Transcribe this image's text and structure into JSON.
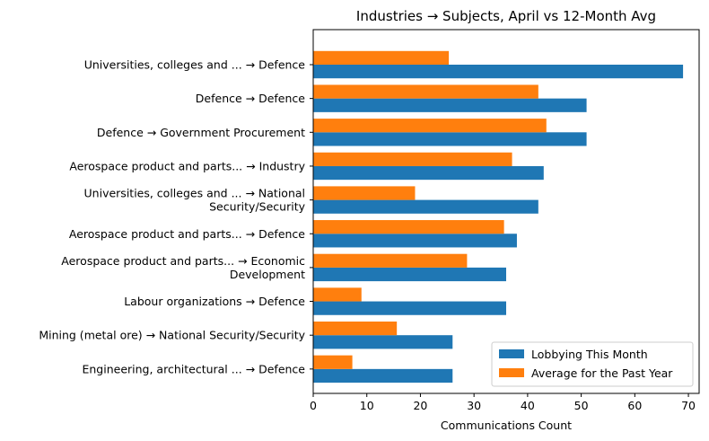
{
  "chart_data": {
    "type": "bar",
    "orientation": "horizontal",
    "title": "Industries → Subjects, April vs 12-Month Avg",
    "xlabel": "Communications Count",
    "ylabel": "",
    "xlim": [
      0,
      72
    ],
    "xticks": [
      "0",
      "10",
      "20",
      "30",
      "40",
      "50",
      "60",
      "70"
    ],
    "xtick_values": [
      0,
      10,
      20,
      30,
      40,
      50,
      60,
      70
    ],
    "grid": false,
    "legend_position": "lower-right",
    "categories": [
      [
        "Universities, colleges and ... → Defence"
      ],
      [
        "Defence → Defence"
      ],
      [
        "Defence → Government Procurement"
      ],
      [
        "Aerospace product and parts... → Industry"
      ],
      [
        "Universities, colleges and ... → National",
        "Security/Security"
      ],
      [
        "Aerospace product and parts... → Defence"
      ],
      [
        "Aerospace product and parts... → Economic",
        "Development"
      ],
      [
        "Labour organizations → Defence"
      ],
      [
        "Mining (metal ore) → National Security/Security"
      ],
      [
        "Engineering, architectural ... → Defence"
      ]
    ],
    "series": [
      {
        "name": "Lobbying This Month",
        "color": "#1f77b4",
        "values": [
          69,
          51,
          51,
          43,
          42,
          38,
          36,
          36,
          26,
          26
        ]
      },
      {
        "name": "Average for the Past Year",
        "color": "#ff7f0e",
        "values": [
          25.3,
          42,
          43.5,
          37.1,
          19,
          35.6,
          28.7,
          9,
          15.6,
          7.3
        ]
      }
    ]
  }
}
